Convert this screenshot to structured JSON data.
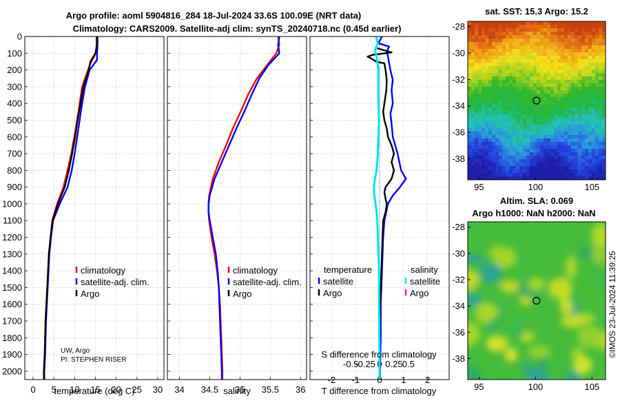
{
  "titles": {
    "line1": "Argo profile: aoml 5904816_284 18-Jul-2024 33.6S 100.09E (NRT data)",
    "line2": "Climatology: CARS2009. Satellite-adj clim: synTS_20240718.nc (0.45d earlier)"
  },
  "depth_ticks": [
    "0",
    "100",
    "200",
    "300",
    "400",
    "500",
    "600",
    "700",
    "800",
    "900",
    "1000",
    "1100",
    "1200",
    "1300",
    "1400",
    "1500",
    "1600",
    "1700",
    "1800",
    "1900",
    "2000"
  ],
  "credit": {
    "line1": "UW, Argo",
    "line2": "PI: STEPHEN RISER"
  },
  "copyright": "©IMOS 23-Jul-2024 11:39:25",
  "colors": {
    "climatology": "#ff0000",
    "satellite": "#0000ff",
    "argo": "#000000",
    "sat_salinity": "#00e5ee",
    "argo_salinity": "#ff00ff"
  },
  "chart_data": [
    {
      "type": "line",
      "xlabel": "temperature (deg C)",
      "xlim": [
        -2,
        31.5
      ],
      "ylim": [
        0,
        2050
      ],
      "xticks": [
        "0",
        "5",
        "10",
        "15",
        "20",
        "25",
        "30"
      ],
      "legend": [
        "climatology",
        "satellite-adj. clim.",
        "Argo"
      ],
      "series": [
        {
          "name": "climatology",
          "color": "#ff0000",
          "depth": [
            0,
            50,
            100,
            150,
            200,
            300,
            400,
            500,
            600,
            700,
            800,
            900,
            1000,
            1100,
            1200,
            1300,
            1400,
            1500,
            1600,
            1700,
            1800,
            1900,
            2000,
            2050
          ],
          "values": [
            15.3,
            15.3,
            15.1,
            14.0,
            13.2,
            11.8,
            11.2,
            10.6,
            9.9,
            9.2,
            8.3,
            7.3,
            5.8,
            4.6,
            4.2,
            3.8,
            3.6,
            3.4,
            3.2,
            3.0,
            2.9,
            2.8,
            2.6,
            2.6
          ]
        },
        {
          "name": "satellite-adj. clim.",
          "color": "#0000ff",
          "depth": [
            0,
            50,
            100,
            140,
            200,
            300,
            400,
            500,
            600,
            700,
            800,
            900,
            1000,
            1100,
            1200,
            1300,
            1400,
            1500,
            1600,
            1700,
            1800,
            1900,
            2000,
            2050
          ],
          "values": [
            15.5,
            15.5,
            15.4,
            15.4,
            13.6,
            12.5,
            11.8,
            11.2,
            10.6,
            10.0,
            9.3,
            8.3,
            6.4,
            4.8,
            4.3,
            3.9,
            3.7,
            3.5,
            3.3,
            3.1,
            3.0,
            2.9,
            2.7,
            2.7
          ]
        },
        {
          "name": "Argo",
          "color": "#000000",
          "depth": [
            0,
            50,
            100,
            150,
            200,
            300,
            400,
            500,
            600,
            700,
            800,
            900,
            1000,
            1100,
            1200,
            1300,
            1400,
            1500,
            1600,
            1700,
            1800,
            1900,
            2000,
            2050
          ],
          "values": [
            15.4,
            15.4,
            15.0,
            13.8,
            13.4,
            12.1,
            11.4,
            10.7,
            10.1,
            9.4,
            8.6,
            7.6,
            6.0,
            4.7,
            4.2,
            3.8,
            3.6,
            3.4,
            3.2,
            3.0,
            2.9,
            2.8,
            2.6,
            2.6
          ]
        }
      ]
    },
    {
      "type": "line",
      "xlabel": "salinity",
      "xlim": [
        33.8,
        36.1
      ],
      "ylim": [
        0,
        2050
      ],
      "xticks": [
        "34",
        "34.5",
        "35",
        "35.5",
        "36"
      ],
      "legend": [
        "climatology",
        "satellite-adj. clim.",
        "Argo"
      ],
      "series": [
        {
          "name": "climatology",
          "color": "#ff0000",
          "depth": [
            0,
            50,
            100,
            170,
            250,
            350,
            450,
            550,
            650,
            750,
            850,
            950,
            1000,
            1050,
            1100,
            1200,
            1300,
            1400,
            1500,
            1600,
            1700,
            1800,
            1900,
            2000,
            2050
          ],
          "values": [
            35.63,
            35.65,
            35.6,
            35.45,
            35.28,
            35.13,
            35.01,
            34.88,
            34.77,
            34.65,
            34.55,
            34.49,
            34.48,
            34.48,
            34.49,
            34.53,
            34.58,
            34.62,
            34.65,
            34.67,
            34.68,
            34.69,
            34.7,
            34.71,
            34.71
          ]
        },
        {
          "name": "satellite-adj. clim.",
          "color": "#0000ff",
          "depth": [
            0,
            50,
            100,
            170,
            250,
            350,
            450,
            550,
            650,
            750,
            850,
            950,
            1000,
            1050,
            1100,
            1200,
            1300,
            1400,
            1500,
            1600,
            1700,
            1800,
            1900,
            2000,
            2050
          ],
          "values": [
            35.65,
            35.63,
            35.65,
            35.47,
            35.32,
            35.19,
            35.07,
            34.94,
            34.82,
            34.7,
            34.58,
            34.5,
            34.48,
            34.48,
            34.5,
            34.55,
            34.6,
            34.63,
            34.65,
            34.66,
            34.67,
            34.68,
            34.69,
            34.7,
            34.7
          ]
        }
      ]
    },
    {
      "type": "line",
      "xlabel": "T difference from climatology",
      "xlabel2": "S difference from climatology",
      "xlim": [
        -2.9,
        2.9
      ],
      "ylim": [
        0,
        2050
      ],
      "xticks": [
        "-2",
        "-1",
        "0",
        "1",
        "2"
      ],
      "xticks2": [
        "-0.5",
        "-0.25",
        "0",
        "0.25",
        "0.5"
      ],
      "legend_headers": [
        "temperature",
        "salinity"
      ],
      "legend": [
        "satellite",
        "Argo",
        "satellite",
        "Argo"
      ],
      "series": [
        {
          "name": "T satellite",
          "color": "#0000ff",
          "depth": [
            0,
            40,
            60,
            90,
            120,
            160,
            200,
            260,
            320,
            400,
            460,
            520,
            600,
            700,
            800,
            850,
            900,
            950,
            1000,
            1100,
            1200,
            1400,
            1600,
            1800,
            2000,
            2050
          ],
          "values": [
            0.1,
            -0.05,
            0.4,
            0.3,
            0.35,
            0.4,
            0.45,
            0.55,
            0.5,
            0.55,
            0.45,
            0.5,
            0.55,
            0.75,
            0.9,
            1.1,
            0.85,
            0.55,
            0.35,
            0.2,
            0.15,
            0.1,
            0.05,
            0.05,
            0.02,
            0.02
          ]
        },
        {
          "name": "T Argo",
          "color": "#000000",
          "depth": [
            70,
            95,
            110,
            120,
            135,
            150,
            160,
            200,
            260,
            320,
            400,
            450,
            500,
            550,
            600,
            650,
            700,
            750,
            800,
            850,
            880,
            900,
            930,
            970,
            1000,
            1050,
            1100,
            1300,
            1500,
            1700,
            1800
          ],
          "values": [
            -0.1,
            0.5,
            -0.3,
            -0.5,
            -0.3,
            -0.15,
            0.2,
            0.25,
            0.3,
            0.28,
            0.2,
            0.15,
            0.2,
            0.3,
            0.35,
            0.5,
            0.6,
            0.5,
            0.6,
            0.5,
            0.35,
            0.25,
            0.2,
            0.25,
            0.3,
            0.25,
            0.15,
            0.1,
            0.05,
            0.02,
            0.0
          ]
        },
        {
          "name": "S satellite",
          "color": "#00e5ee",
          "depth": [
            0,
            40,
            80,
            120,
            200,
            300,
            400,
            500,
            600,
            700,
            800,
            850,
            900,
            950,
            1000,
            1050,
            1100,
            1200,
            1300,
            1400,
            1500,
            1600,
            1700,
            1800,
            1900,
            2000,
            2050
          ],
          "values": [
            -0.06,
            -0.03,
            -0.08,
            -0.05,
            -0.02,
            -0.02,
            -0.02,
            -0.01,
            -0.02,
            -0.03,
            -0.05,
            -0.08,
            -0.1,
            -0.09,
            -0.07,
            -0.05,
            -0.04,
            -0.03,
            -0.02,
            -0.01,
            -0.01,
            -0.01,
            -0.005,
            -0.005,
            0.0,
            0.0,
            0.0
          ]
        }
      ]
    },
    {
      "type": "heatmap",
      "title": "sat. SST: 15.3 Argo: 15.2",
      "xlim": [
        94,
        106.2
      ],
      "ylim": [
        -39.6,
        -27.6
      ],
      "xticks": [
        "95",
        "100",
        "105"
      ],
      "yticks": [
        "-28",
        "-30",
        "-32",
        "-34",
        "-36",
        "-38"
      ],
      "marker": [
        100.09,
        -33.6
      ]
    },
    {
      "type": "heatmap",
      "title": "Altim. SLA: 0.069",
      "title2": "Argo h1000: NaN h2000: NaN",
      "xlim": [
        94,
        106.2
      ],
      "ylim": [
        -39.6,
        -27.6
      ],
      "xticks": [
        "95",
        "100",
        "105"
      ],
      "yticks": [
        "-28",
        "-30",
        "-32",
        "-34",
        "-36",
        "-38"
      ],
      "marker": [
        100.09,
        -33.6
      ]
    }
  ]
}
